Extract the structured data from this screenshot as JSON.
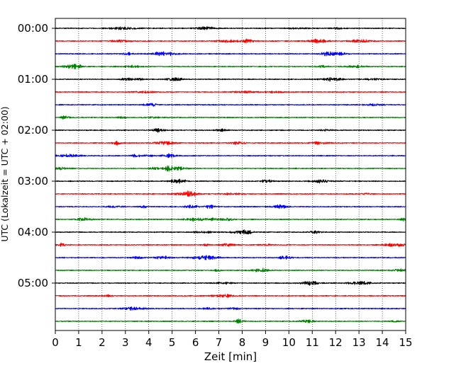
{
  "chart_data": {
    "type": "line",
    "title": "",
    "xlabel": "Zeit  [min]",
    "ylabel": "UTC (Lokalzeit = UTC + 02:00)",
    "xlim": [
      0,
      15
    ],
    "xticks": [
      "0",
      "1",
      "2",
      "3",
      "4",
      "5",
      "6",
      "7",
      "8",
      "9",
      "10",
      "11",
      "12",
      "13",
      "14",
      "15"
    ],
    "ytick_labels": [
      "00:00",
      "01:00",
      "02:00",
      "03:00",
      "04:00",
      "05:00"
    ],
    "trace_interval_min": 15,
    "trace_count": 24,
    "trace_colors": [
      "#000000",
      "#ff0000",
      "#0000ff",
      "#008000"
    ],
    "grid": "vertical dotted",
    "traces": [
      {
        "start": "00:00",
        "color": "#000000"
      },
      {
        "start": "00:15",
        "color": "#ff0000"
      },
      {
        "start": "00:30",
        "color": "#0000ff"
      },
      {
        "start": "00:45",
        "color": "#008000"
      },
      {
        "start": "01:00",
        "color": "#000000"
      },
      {
        "start": "01:15",
        "color": "#ff0000"
      },
      {
        "start": "01:30",
        "color": "#0000ff"
      },
      {
        "start": "01:45",
        "color": "#008000"
      },
      {
        "start": "02:00",
        "color": "#000000"
      },
      {
        "start": "02:15",
        "color": "#ff0000"
      },
      {
        "start": "02:30",
        "color": "#0000ff"
      },
      {
        "start": "02:45",
        "color": "#008000"
      },
      {
        "start": "03:00",
        "color": "#000000"
      },
      {
        "start": "03:15",
        "color": "#ff0000"
      },
      {
        "start": "03:30",
        "color": "#0000ff"
      },
      {
        "start": "03:45",
        "color": "#008000"
      },
      {
        "start": "04:00",
        "color": "#000000"
      },
      {
        "start": "04:15",
        "color": "#ff0000"
      },
      {
        "start": "04:30",
        "color": "#0000ff"
      },
      {
        "start": "04:45",
        "color": "#008000"
      },
      {
        "start": "05:00",
        "color": "#000000"
      },
      {
        "start": "05:15",
        "color": "#ff0000"
      },
      {
        "start": "05:30",
        "color": "#0000ff"
      },
      {
        "start": "05:45",
        "color": "#008000"
      }
    ]
  }
}
